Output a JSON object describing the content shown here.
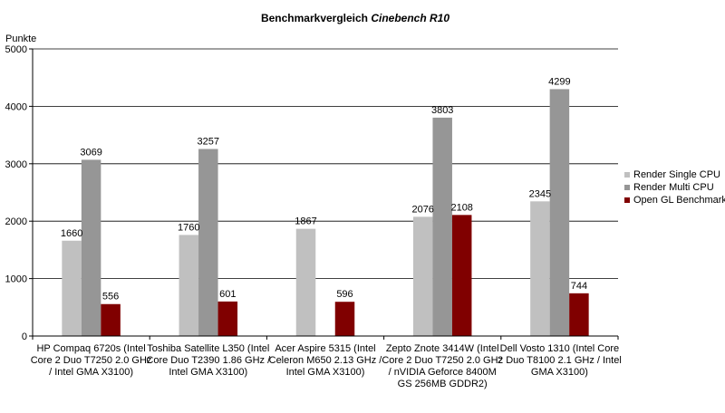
{
  "chart_data": {
    "type": "bar",
    "title_prefix": "Benchmarkvergleich ",
    "title_emphasis": "Cinebench R10",
    "ylabel": "Punkte",
    "ylim": [
      0,
      5000
    ],
    "yticks": [
      0,
      1000,
      2000,
      3000,
      4000,
      5000
    ],
    "grid": true,
    "legend_position": "right",
    "categories": [
      [
        "HP Compaq 6720s (Intel",
        "Core 2 Duo T7250 2.0 GHz",
        "/ Intel GMA X3100)"
      ],
      [
        "Toshiba Satellite L350 (Intel",
        "Core Duo T2390 1.86 GHz /",
        "Intel GMA X3100)"
      ],
      [
        "Acer Aspire 5315 (Intel",
        "Celeron M650 2.13 GHz /",
        "Intel GMA X3100)"
      ],
      [
        "Zepto Znote 3414W (Intel",
        "Core 2 Duo T7250 2.0 GHz",
        "/ nVIDIA Geforce 8400M",
        "GS 256MB GDDR2)"
      ],
      [
        "Dell Vosto 1310 (Intel Core",
        "2 Duo T8100 2.1 GHz / Intel",
        "GMA X3100)"
      ]
    ],
    "series": [
      {
        "name": "Render Single CPU",
        "color": "#c0c0c0",
        "values": [
          1660,
          1760,
          1867,
          2076,
          2345
        ]
      },
      {
        "name": "Render Multi CPU",
        "color": "#969696",
        "values": [
          3069,
          3257,
          null,
          3803,
          4299
        ]
      },
      {
        "name": "Open GL Benchmark",
        "color": "#800000",
        "values": [
          556,
          601,
          596,
          2108,
          744
        ]
      }
    ]
  }
}
